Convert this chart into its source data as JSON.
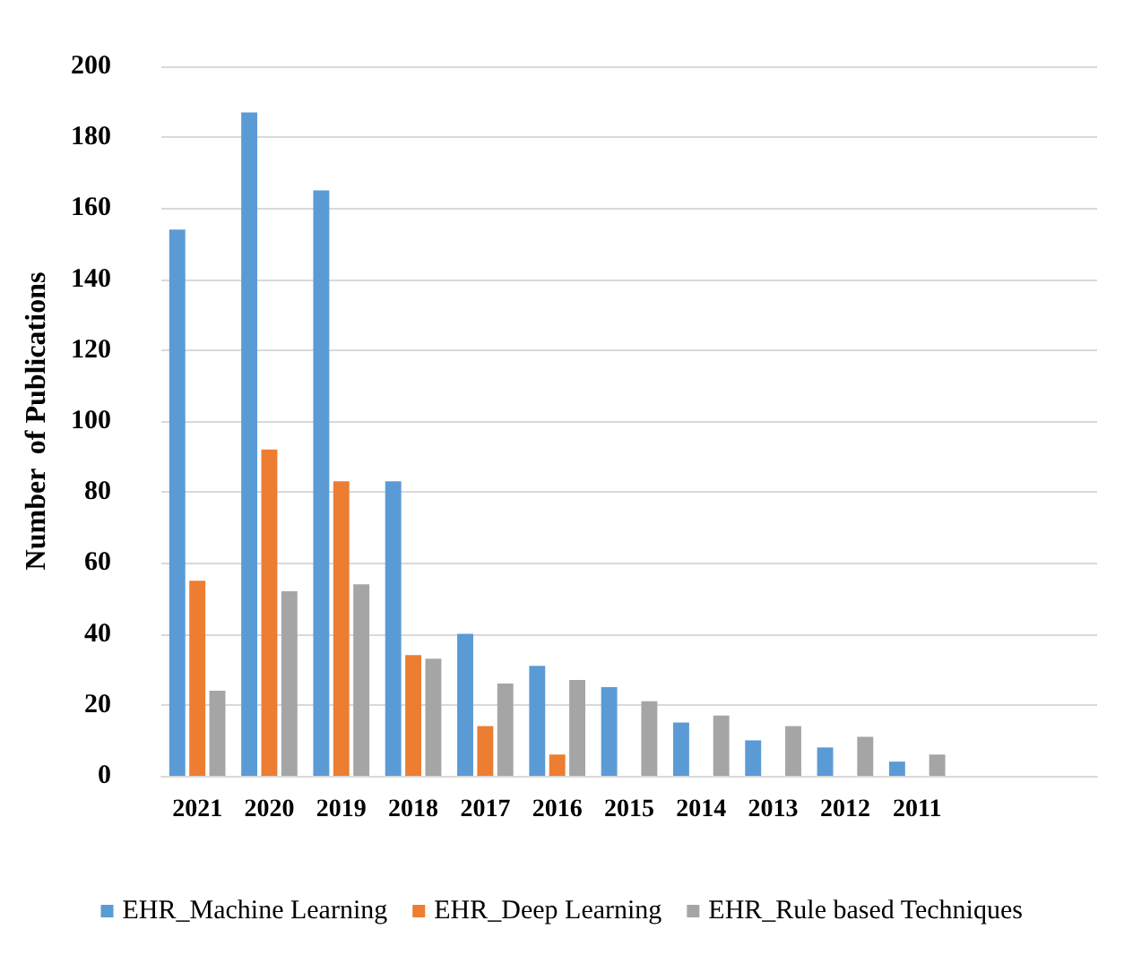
{
  "chart_data": {
    "type": "bar",
    "ylabel": "Number  of Publications",
    "categories": [
      "2021",
      "2020",
      "2019",
      "2018",
      "2017",
      "2016",
      "2015",
      "2014",
      "2013",
      "2012",
      "2011",
      null,
      null
    ],
    "series": [
      {
        "name": "EHR_Machine Learning",
        "color": "#5b9bd5",
        "values": [
          154,
          187,
          165,
          83,
          40,
          31,
          25,
          15,
          10,
          8,
          4,
          null,
          null
        ]
      },
      {
        "name": "EHR_Deep Learning",
        "color": "#ed7d31",
        "values": [
          55,
          92,
          83,
          34,
          14,
          6,
          0,
          0,
          0,
          0,
          0,
          null,
          null
        ]
      },
      {
        "name": "EHR_Rule based Techniques",
        "color": "#a5a5a5",
        "values": [
          24,
          52,
          54,
          33,
          26,
          27,
          21,
          17,
          14,
          11,
          6,
          null,
          null
        ]
      }
    ],
    "ylim": [
      0,
      200
    ],
    "yticks": [
      0,
      20,
      40,
      60,
      80,
      100,
      120,
      140,
      160,
      180,
      200
    ],
    "grid": "y",
    "legend": "bottom"
  }
}
